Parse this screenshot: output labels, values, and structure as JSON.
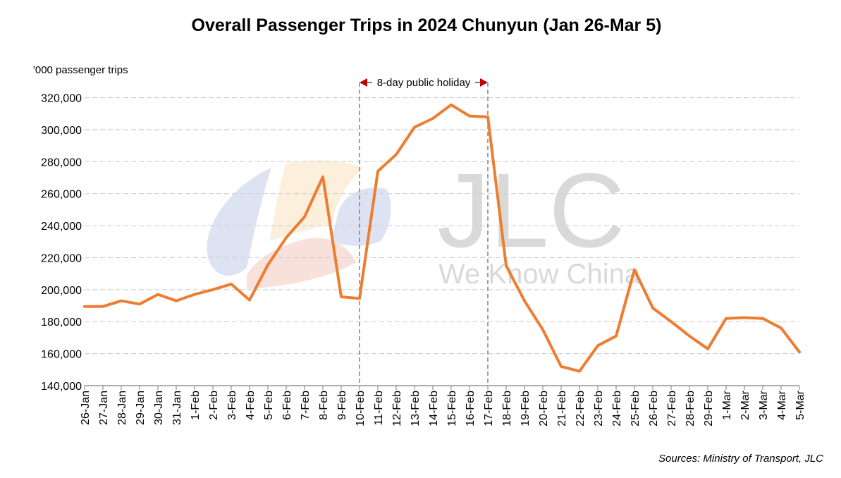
{
  "chart_data": {
    "type": "line",
    "title": "Overall Passenger Trips in 2024 Chunyun (Jan 26-Mar 5)",
    "ylabel": "'000 passenger trips",
    "xlabel": "",
    "ylim": [
      140000,
      320000
    ],
    "ytick_step": 20000,
    "yticks": [
      "140,000",
      "160,000",
      "180,000",
      "200,000",
      "220,000",
      "240,000",
      "260,000",
      "280,000",
      "300,000",
      "320,000"
    ],
    "grid": "horizontal dashed",
    "legend": "none",
    "categories": [
      "26-Jan",
      "27-Jan",
      "28-Jan",
      "29-Jan",
      "30-Jan",
      "31-Jan",
      "1-Feb",
      "2-Feb",
      "3-Feb",
      "4-Feb",
      "5-Feb",
      "6-Feb",
      "7-Feb",
      "8-Feb",
      "9-Feb",
      "10-Feb",
      "11-Feb",
      "12-Feb",
      "13-Feb",
      "14-Feb",
      "15-Feb",
      "16-Feb",
      "17-Feb",
      "18-Feb",
      "19-Feb",
      "20-Feb",
      "21-Feb",
      "22-Feb",
      "23-Feb",
      "24-Feb",
      "25-Feb",
      "26-Feb",
      "27-Feb",
      "28-Feb",
      "29-Feb",
      "1-Mar",
      "2-Mar",
      "3-Mar",
      "4-Mar",
      "5-Mar"
    ],
    "series": [
      {
        "color": "#ED7D31",
        "values": [
          189500,
          189500,
          193000,
          191000,
          197000,
          193000,
          197000,
          200000,
          203500,
          193500,
          215500,
          232500,
          245500,
          270500,
          195500,
          194500,
          274000,
          284500,
          301500,
          307000,
          315500,
          308500,
          308000,
          215000,
          193000,
          175000,
          152000,
          149000,
          165000,
          171000,
          212500,
          188500,
          180000,
          171000,
          163000,
          182000,
          182500,
          182000,
          176000,
          161000
        ]
      }
    ],
    "annotation": {
      "label": "8-day public holiday",
      "start": "10-Feb",
      "end": "17-Feb",
      "line_color": "#808080",
      "arrow_color": "#C00000"
    },
    "source": "Sources: Ministry of Transport, JLC"
  },
  "watermark": {
    "brand": "JLC",
    "tagline": "We Know China",
    "text_color": "#D9D9D9",
    "logo_colors": [
      "#D6DCF0",
      "#FBEBD3",
      "#F8D9D2"
    ]
  }
}
